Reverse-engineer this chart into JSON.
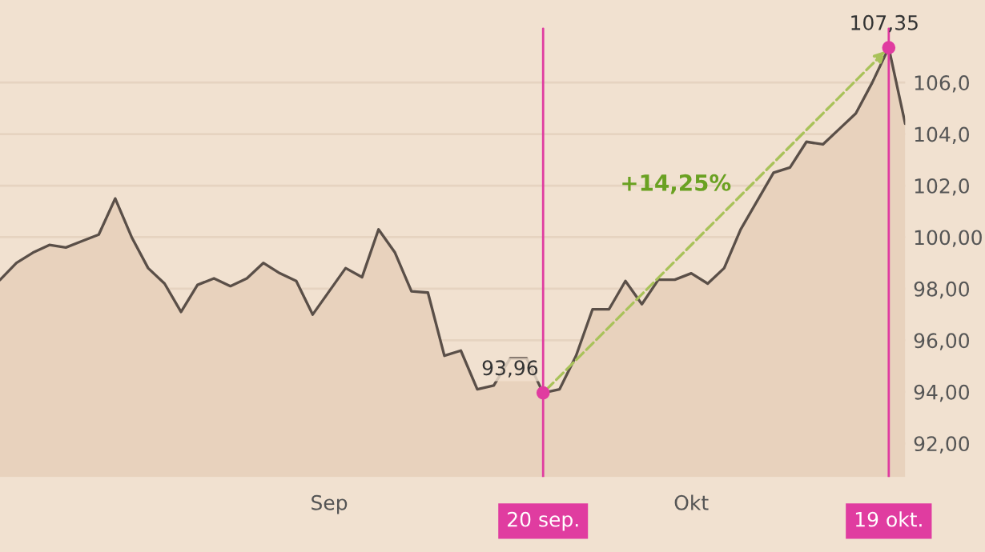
{
  "chart_data": {
    "type": "area",
    "categories": [
      null,
      null,
      null,
      null,
      null,
      null,
      null,
      null,
      null,
      null,
      null,
      null,
      null,
      null,
      null,
      null,
      null,
      null,
      null,
      null,
      "Sep",
      null,
      null,
      null,
      null,
      null,
      null,
      null,
      null,
      null,
      null,
      null,
      null,
      "20 sep.",
      null,
      null,
      null,
      null,
      null,
      null,
      null,
      null,
      "Okt",
      null,
      null,
      null,
      null,
      null,
      null,
      null,
      null,
      null,
      null,
      null,
      "19 okt.",
      null
    ],
    "series": [
      {
        "color": "#5a4f48",
        "values": [
          98.34,
          99.0,
          99.4,
          99.7,
          99.6,
          99.85,
          100.1,
          101.5,
          100.0,
          98.8,
          98.2,
          97.1,
          98.15,
          98.4,
          98.1,
          98.4,
          99.0,
          98.6,
          98.3,
          97.0,
          97.9,
          98.8,
          98.45,
          100.3,
          99.4,
          97.9,
          97.85,
          95.4,
          95.6,
          94.1,
          94.25,
          95.3,
          95.3,
          93.96,
          94.1,
          95.4,
          97.2,
          97.2,
          98.3,
          97.4,
          98.35,
          98.35,
          98.6,
          98.2,
          98.8,
          100.3,
          101.4,
          102.5,
          102.7,
          103.7,
          103.6,
          104.2,
          104.8,
          106.0,
          107.35,
          104.4
        ],
        "value_labels": [
          null,
          null,
          null,
          null,
          null,
          null,
          null,
          null,
          null,
          null,
          null,
          null,
          null,
          null,
          null,
          null,
          null,
          null,
          null,
          null,
          null,
          null,
          null,
          null,
          null,
          null,
          null,
          null,
          null,
          null,
          null,
          null,
          null,
          "93,96",
          null,
          null,
          null,
          null,
          null,
          null,
          null,
          null,
          null,
          null,
          null,
          null,
          null,
          null,
          null,
          null,
          null,
          null,
          null,
          null,
          "107,35",
          null
        ]
      }
    ],
    "ylim": [
      90.7,
      109.2
    ],
    "yticks": [
      {
        "value": 92,
        "label": "92,00"
      },
      {
        "value": 94,
        "label": "94,00"
      },
      {
        "value": 96,
        "label": "96,00"
      },
      {
        "value": 98,
        "label": "98,00"
      },
      {
        "value": 100,
        "label": "100,00"
      },
      {
        "value": 102,
        "label": "102,0"
      },
      {
        "value": 104,
        "label": "104,0"
      },
      {
        "value": 106,
        "label": "106,0"
      }
    ],
    "grid": "y",
    "ref_lines": [
      {
        "axis": "x",
        "value": "20 sep.",
        "color": "#e03ca0"
      },
      {
        "axis": "x",
        "value": "19 okt.",
        "color": "#e03ca0"
      }
    ],
    "annotations": [
      "+14,25%"
    ]
  }
}
